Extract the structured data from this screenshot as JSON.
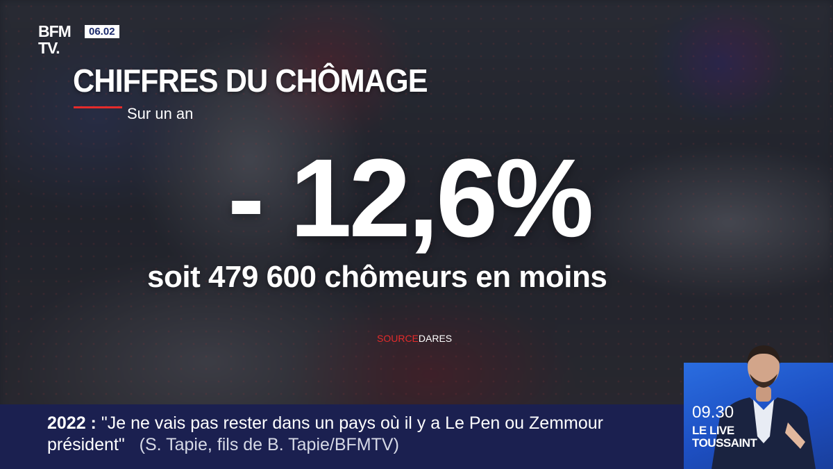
{
  "channel": {
    "logo_line1": "BFM",
    "logo_line2": "TV.",
    "clock": "06.02"
  },
  "graphic": {
    "title": "CHIFFRES DU CHÔMAGE",
    "subtitle": "Sur un an",
    "value": "- 12,6%",
    "detail": "soit 479 600 chômeurs en moins",
    "source_label": "SOURCE",
    "source_value": "DARES"
  },
  "ticker": {
    "topic": "2022 :",
    "quote_line1": "\"Je ne vais pas rester dans un pays où il y a Le Pen ou Zemmour",
    "quote_line2": "président\"",
    "credit": "(S. Tapie, fils de B. Tapie/BFMTV)"
  },
  "up_next": {
    "time": "09.30",
    "show_line1": "LE LIVE",
    "show_line2": "TOUSSAINT"
  },
  "colors": {
    "ticker_bg": "#1b2050",
    "accent_red": "#e52b2b",
    "up_next_bg": "#2a6de0",
    "clock_text": "#1b2a6b"
  }
}
